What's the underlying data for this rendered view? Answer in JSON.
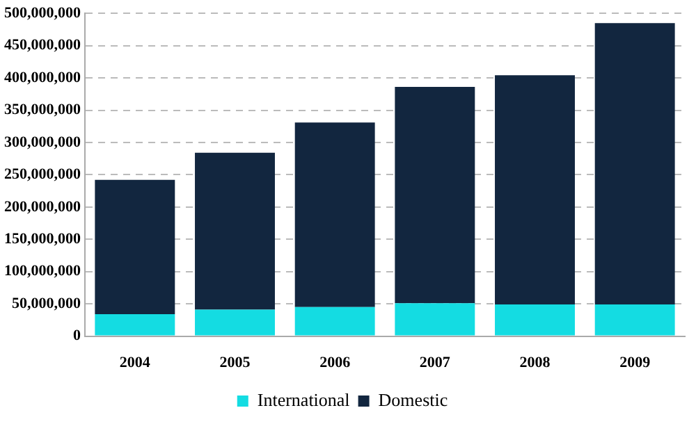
{
  "chart_data": {
    "type": "bar",
    "stacked": true,
    "categories": [
      "2004",
      "2005",
      "2006",
      "2007",
      "2008",
      "2009"
    ],
    "series": [
      {
        "name": "International",
        "color": "#14dce2",
        "values": [
          34000000,
          41000000,
          45000000,
          51000000,
          49000000,
          49000000
        ]
      },
      {
        "name": "Domestic",
        "color": "#12263f",
        "values": [
          208000000,
          243000000,
          286000000,
          335000000,
          355000000,
          436000000
        ]
      }
    ],
    "ylim": [
      0,
      500000000
    ],
    "yticks": [
      {
        "value": 0,
        "label": "0"
      },
      {
        "value": 50000000,
        "label": "50,000,000"
      },
      {
        "value": 100000000,
        "label": "100,000,000"
      },
      {
        "value": 150000000,
        "label": "150,000,000"
      },
      {
        "value": 200000000,
        "label": "200,000,000"
      },
      {
        "value": 250000000,
        "label": "250,000,000"
      },
      {
        "value": 300000000,
        "label": "300,000,000"
      },
      {
        "value": 350000000,
        "label": "350,000,000"
      },
      {
        "value": 400000000,
        "label": "400,000,000"
      },
      {
        "value": 450000000,
        "label": "450,000,000"
      },
      {
        "value": 500000000,
        "label": "500,000,000"
      }
    ],
    "grid": "y",
    "legend": "bottom"
  }
}
